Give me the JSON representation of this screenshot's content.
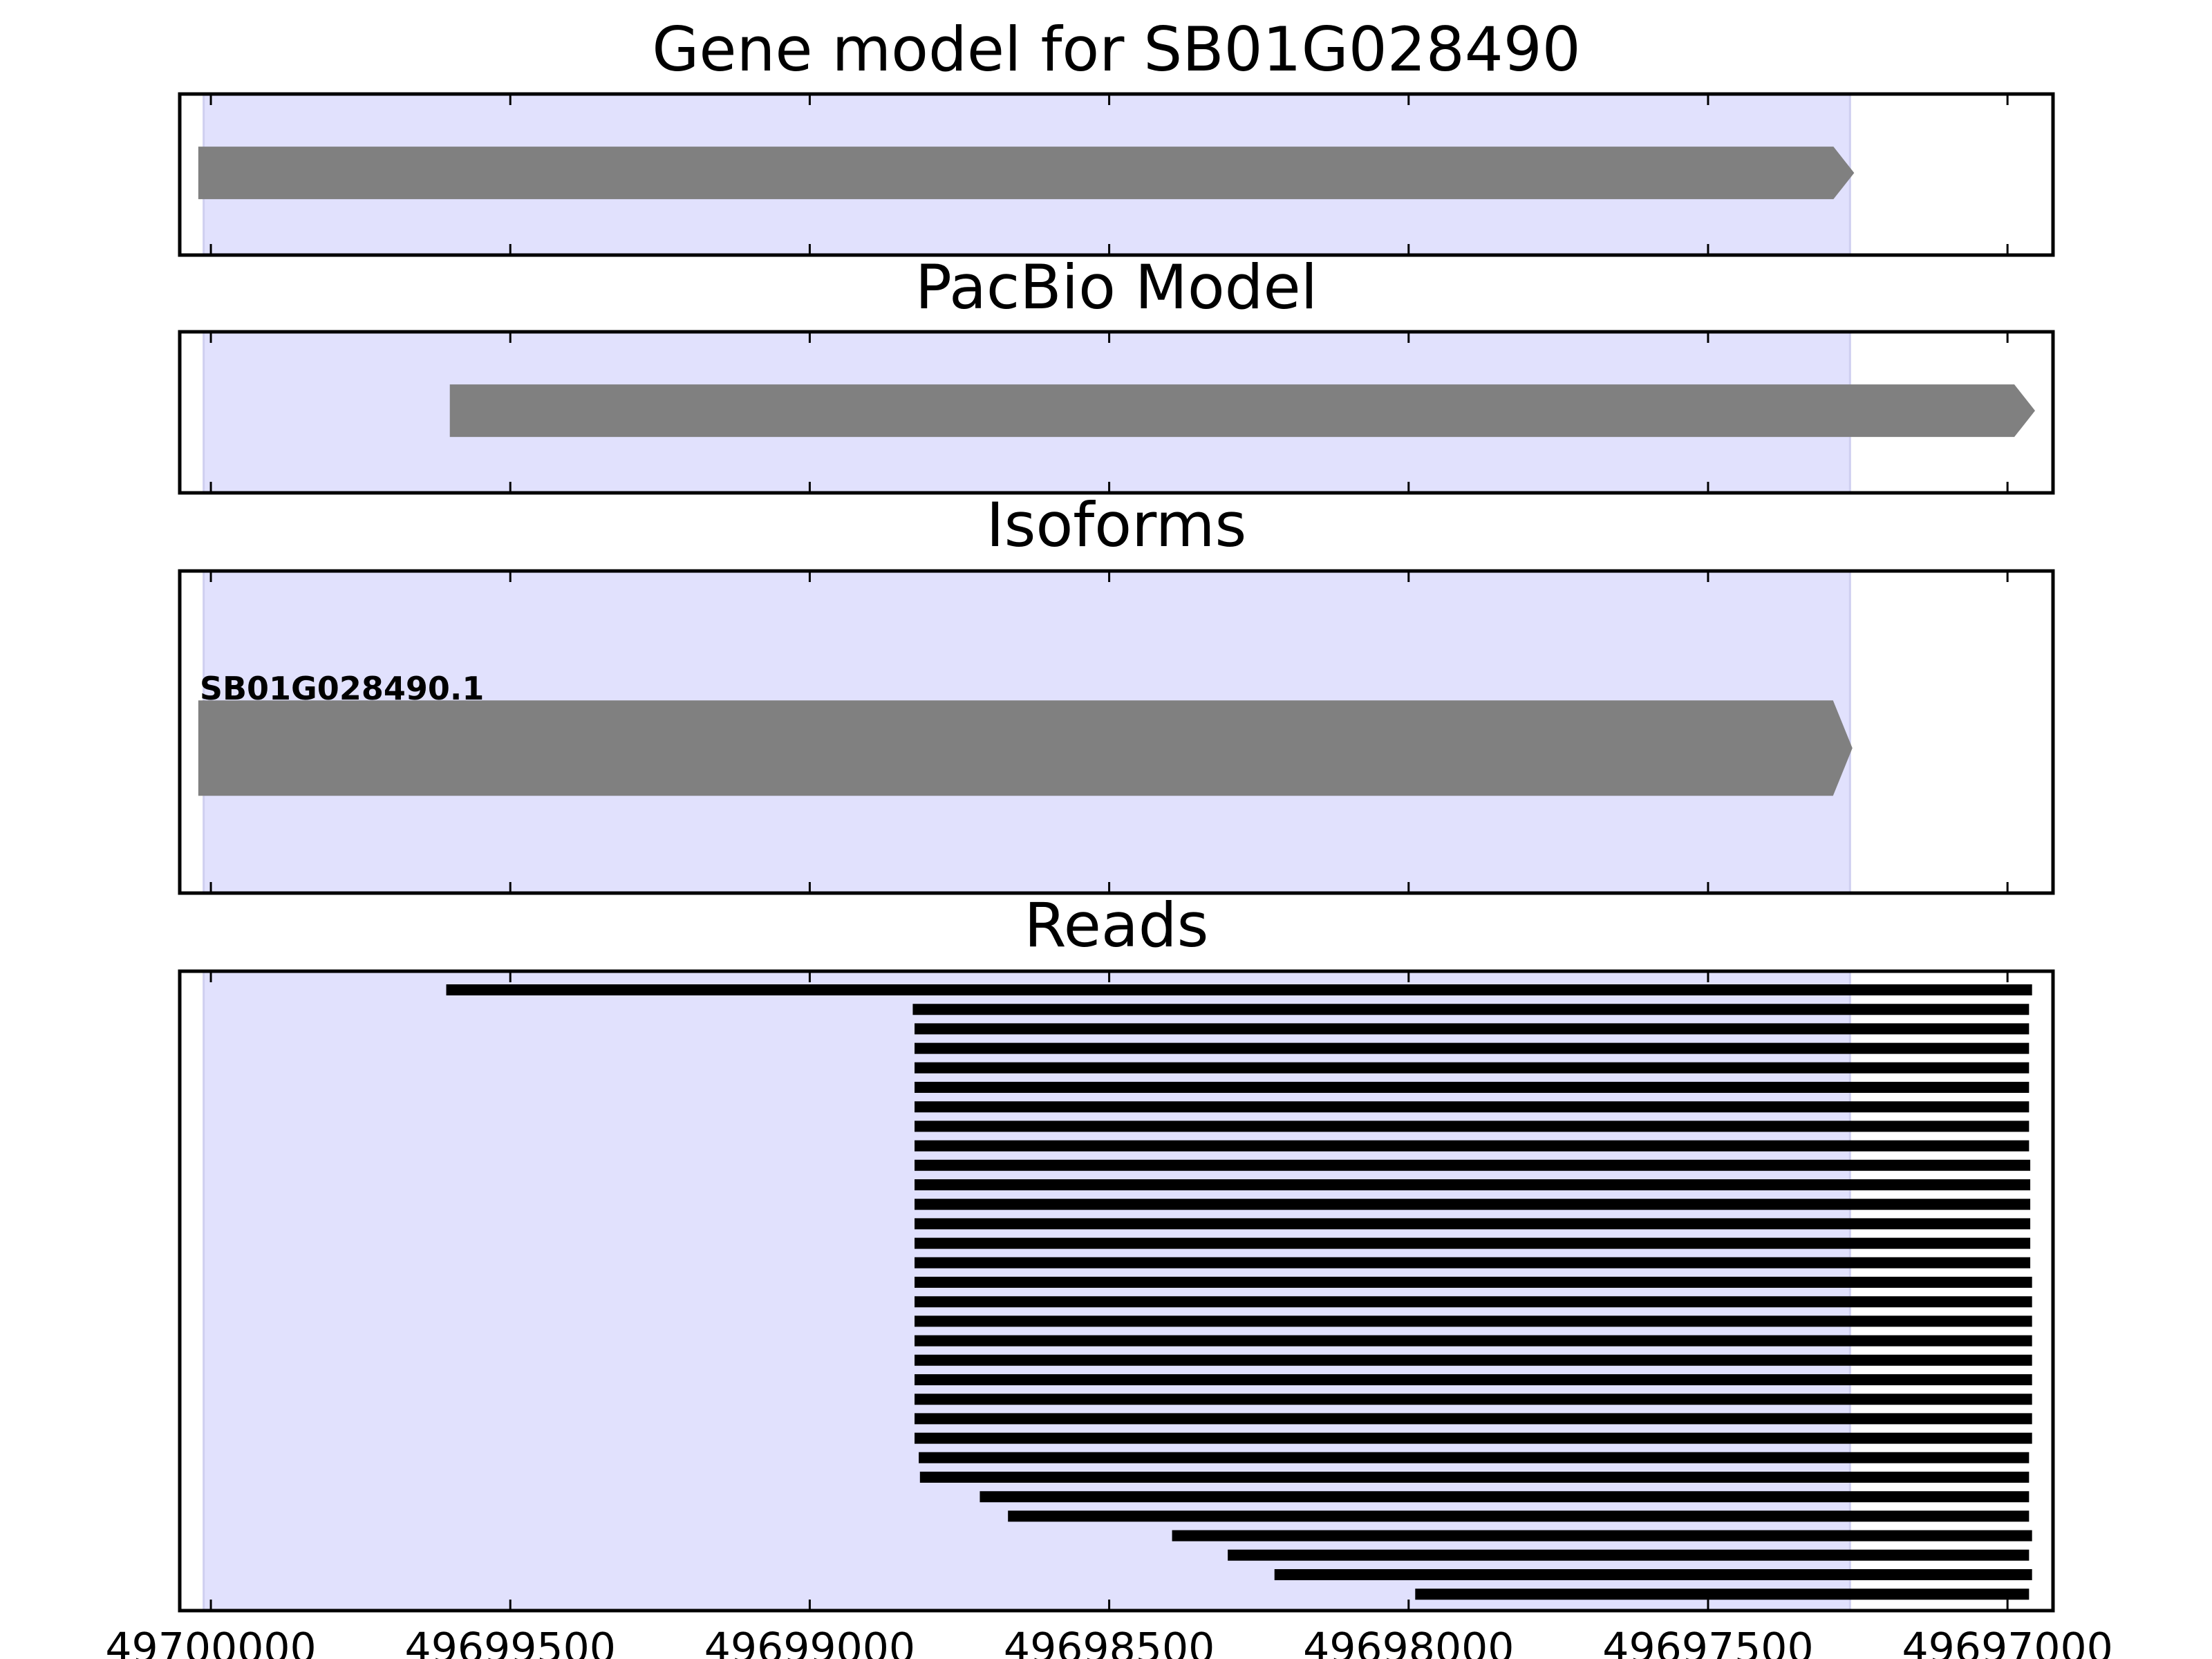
{
  "chart_data": [
    {
      "type": "gene",
      "title": "Gene model for SB01G028490",
      "xlim": [
        49700052,
        49696924
      ],
      "xticks": [
        49700000,
        49699500,
        49699000,
        49698500,
        49698000,
        49697500,
        49697000
      ],
      "highlight": [
        49700012,
        49697263
      ],
      "highlight_color": "#e1e1fd",
      "color": "#808080",
      "start": 49700021,
      "end": 49697256,
      "tick_labels": false
    },
    {
      "type": "gene",
      "title": "PacBio Model",
      "xlim": [
        49700052,
        49696924
      ],
      "xticks": [
        49700000,
        49699500,
        49699000,
        49698500,
        49698000,
        49697500,
        49697000
      ],
      "highlight": [
        49700012,
        49697263
      ],
      "highlight_color": "#e1e1fd",
      "color": "#808080",
      "start": 49699601,
      "end": 49696954,
      "tick_labels": false
    },
    {
      "type": "isoform",
      "title": "Isoforms",
      "xlim": [
        49700052,
        49696924
      ],
      "xticks": [
        49700000,
        49699500,
        49699000,
        49698500,
        49698000,
        49697500,
        49697000
      ],
      "highlight": [
        49700012,
        49697263
      ],
      "highlight_color": "#e1e1fd",
      "color": "#808080",
      "name": "SB01G028490.1",
      "start": 49700021,
      "end": 49697259,
      "tick_labels": false
    },
    {
      "type": "reads",
      "title": "Reads",
      "xlim": [
        49700052,
        49696924
      ],
      "xticks": [
        49700000,
        49699500,
        49699000,
        49698500,
        49698000,
        49697500,
        49697000
      ],
      "highlight": [
        49700012,
        49697263
      ],
      "highlight_color": "#e1e1fd",
      "color": "#000000",
      "starts": [
        49699607,
        49698828,
        49698825,
        49698825,
        49698825,
        49698825,
        49698825,
        49698825,
        49698825,
        49698825,
        49698825,
        49698825,
        49698825,
        49698825,
        49698825,
        49698825,
        49698825,
        49698825,
        49698825,
        49698825,
        49698825,
        49698825,
        49698825,
        49698825,
        49698818,
        49698816,
        49698716,
        49698669,
        49698395,
        49698302,
        49698224,
        49697989
      ],
      "ends": [
        49696959,
        49696964,
        49696964,
        49696964,
        49696964,
        49696964,
        49696964,
        49696964,
        49696964,
        49696962,
        49696962,
        49696962,
        49696962,
        49696962,
        49696962,
        49696959,
        49696959,
        49696959,
        49696959,
        49696959,
        49696959,
        49696959,
        49696959,
        49696959,
        49696964,
        49696964,
        49696964,
        49696964,
        49696959,
        49696964,
        49696959,
        49696964
      ],
      "tick_labels": true
    }
  ]
}
